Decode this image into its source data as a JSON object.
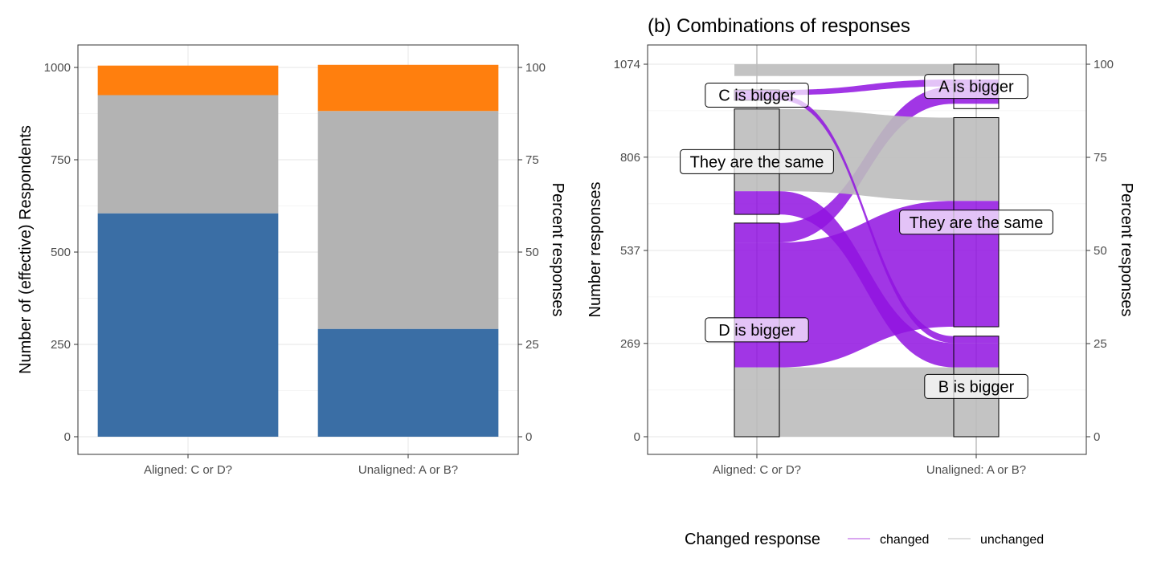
{
  "chart_data": [
    {
      "type": "bar",
      "stacked": true,
      "title": "",
      "ylabel": "Number of (effective) Respondents",
      "y2label": "Percent responses",
      "categories": [
        "Aligned: C or D?",
        "Unaligned: A or B?"
      ],
      "ylim": [
        0,
        1000
      ],
      "y_ticks": [
        0,
        250,
        500,
        750,
        1000
      ],
      "y2_ticks": [
        0,
        25,
        50,
        75,
        100
      ],
      "grid": true,
      "series": [
        {
          "values": [
            605,
            292
          ],
          "color": "#3A6EA5"
        },
        {
          "values": [
            320,
            590
          ],
          "color": "#B3B3B3"
        },
        {
          "values": [
            80,
            125
          ],
          "color": "#FF7F0E"
        }
      ]
    },
    {
      "type": "alluvial",
      "title": "(b) Combinations of responses",
      "ylabel": "Number responses",
      "y2label": "Percent responses",
      "axes": [
        "Aligned: C or D?",
        "Unaligned: A or B?"
      ],
      "ylim": [
        0,
        1074
      ],
      "y_ticks": [
        0,
        269,
        537,
        806,
        1074
      ],
      "y2_ticks": [
        0,
        25,
        50,
        75,
        100
      ],
      "grid": true,
      "strata": {
        "Aligned: C or D?": [
          {
            "label": "D is bigger",
            "values": [
              0,
              616
            ]
          },
          {
            "label": "They are the same",
            "values": [
              641,
              945
            ]
          },
          {
            "label": "C is bigger",
            "values": [
              970,
              1000
            ]
          }
        ],
        "Unaligned: A or B?": [
          {
            "label": "B is bigger",
            "values": [
              0,
              290
            ]
          },
          {
            "label": "They are the same",
            "values": [
              317,
              920
            ]
          },
          {
            "label": "A is bigger",
            "values": [
              946,
              1074
            ]
          }
        ]
      },
      "flows": [
        {
          "from": "D is bigger",
          "to": "B is bigger",
          "values": [
            0,
            200
          ],
          "values_to": [
            0,
            200
          ],
          "status": "unchanged"
        },
        {
          "from": "D is bigger",
          "to": "They are the same",
          "values": [
            200,
            560
          ],
          "values_to": [
            317,
            680
          ],
          "status": "changed"
        },
        {
          "from": "D is bigger",
          "to": "A is bigger",
          "values": [
            560,
            616
          ],
          "values_to": [
            960,
            1010
          ],
          "status": "changed"
        },
        {
          "from": "They are the same",
          "to": "B is bigger",
          "values": [
            641,
            708
          ],
          "values_to": [
            200,
            270
          ],
          "status": "changed"
        },
        {
          "from": "They are the same",
          "to": "They are the same",
          "values": [
            708,
            945
          ],
          "values_to": [
            680,
            920
          ],
          "status": "unchanged"
        },
        {
          "from": "C is bigger",
          "to": "B is bigger",
          "values": [
            970,
            985
          ],
          "values_to": [
            270,
            290
          ],
          "status": "changed"
        },
        {
          "from": "C is bigger",
          "to": "A is bigger",
          "values": [
            985,
            1000
          ],
          "values_to": [
            1010,
            1030
          ],
          "status": "changed"
        },
        {
          "from": "They are the same",
          "to": "A is bigger",
          "values": [
            1040,
            1074
          ],
          "values_to": [
            1040,
            1074
          ],
          "status": "unchanged"
        }
      ],
      "legend": {
        "title": "Changed response",
        "entries": [
          {
            "label": "changed",
            "color": "#D9A6F0"
          },
          {
            "label": "unchanged",
            "color": "#E0E0E0"
          }
        ],
        "placement": "bottom"
      },
      "colors": {
        "changed_flow": "#9013E0",
        "unchanged_flow": "#BDBDBD",
        "stratum_fill": "#BDBDBD"
      }
    }
  ]
}
